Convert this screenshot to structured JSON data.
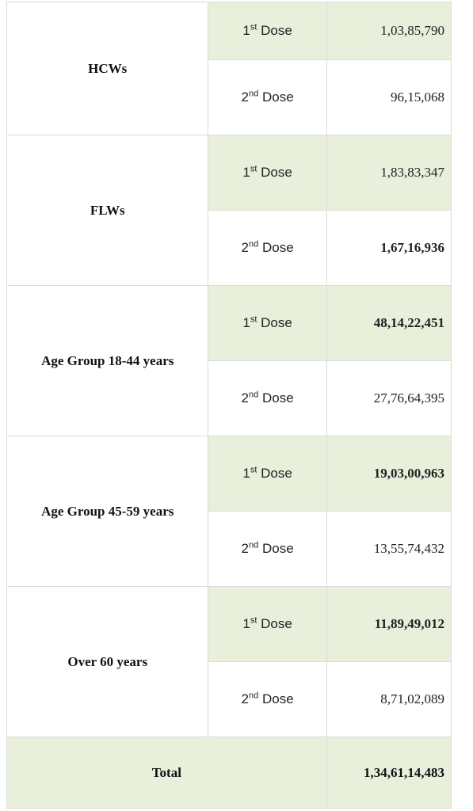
{
  "table": {
    "groups": [
      {
        "name": "HCWs",
        "dose1": {
          "ordinal": "1",
          "suffix": "st",
          "label": "Dose",
          "count": "1,03,85,790"
        },
        "dose2": {
          "ordinal": "2",
          "suffix": "nd",
          "label": "Dose",
          "count": "96,15,068"
        }
      },
      {
        "name": "FLWs",
        "dose1": {
          "ordinal": "1",
          "suffix": "st",
          "label": "Dose",
          "count": "1,83,83,347"
        },
        "dose2": {
          "ordinal": "2",
          "suffix": "nd",
          "label": "Dose",
          "count": "1,67,16,936"
        }
      },
      {
        "name": "Age Group 18-44 years",
        "dose1": {
          "ordinal": "1",
          "suffix": "st",
          "label": "Dose",
          "count": "48,14,22,451"
        },
        "dose2": {
          "ordinal": "2",
          "suffix": "nd",
          "label": "Dose",
          "count": "27,76,64,395"
        }
      },
      {
        "name": "Age Group 45-59 years",
        "dose1": {
          "ordinal": "1",
          "suffix": "st",
          "label": "Dose",
          "count": "19,03,00,963"
        },
        "dose2": {
          "ordinal": "2",
          "suffix": "nd",
          "label": "Dose",
          "count": "13,55,74,432"
        }
      },
      {
        "name": "Over 60 years",
        "dose1": {
          "ordinal": "1",
          "suffix": "st",
          "label": "Dose",
          "count": "11,89,49,012"
        },
        "dose2": {
          "ordinal": "2",
          "suffix": "nd",
          "label": "Dose",
          "count": "8,71,02,089"
        }
      }
    ],
    "total": {
      "label": "Total",
      "count": "1,34,61,14,483"
    },
    "colors": {
      "shaded_row": "#e8f0dc",
      "border": "#dcdcdc"
    }
  }
}
